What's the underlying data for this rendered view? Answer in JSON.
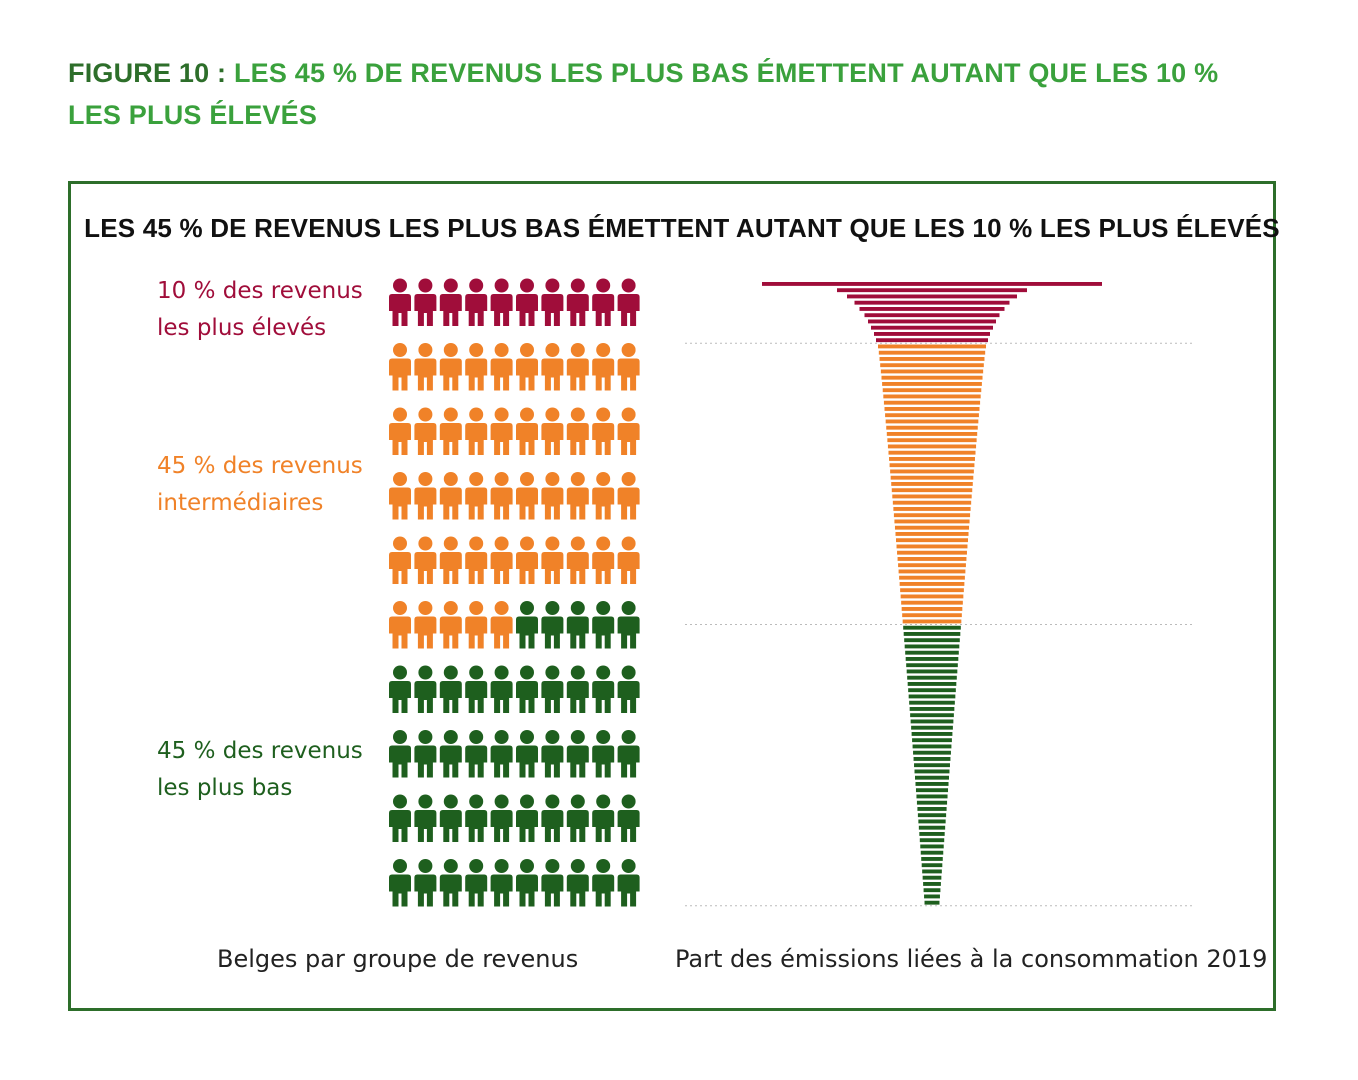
{
  "figure": {
    "title_prefix": "FIGURE 10 :",
    "title": "LES 45 % DE REVENUS LES PLUS BAS ÉMETTENT AUTANT QUE LES 10 % LES PLUS ÉLEVÉS"
  },
  "colors": {
    "top": "#a00d3a",
    "middle": "#f08228",
    "bottom": "#1e5f1e",
    "frame": "#2d6e2a",
    "title_green": "#3aa13c"
  },
  "chart_data": {
    "type": "bar",
    "title": "LES 45 % DE REVENUS LES PLUS BAS ÉMETTENT AUTANT QUE LES 10 % LES PLUS ÉLEVÉS",
    "groups": [
      {
        "label": "10 % des revenus les plus élevés",
        "people": 10,
        "color": "#a00d3a",
        "bars": 10
      },
      {
        "label": "45 % des revenus intermédiaires",
        "people": 45,
        "color": "#f08228",
        "bars": 45
      },
      {
        "label": "45 % des revenus les plus bas",
        "people": 45,
        "color": "#1e5f1e",
        "bars": 45
      }
    ],
    "emission_share_equal": "10 % des revenus les plus élevés = 45 % des revenus les plus bas",
    "left_axis_label": "Belges par groupe de revenus",
    "right_axis_label": "Part des émissions liées à la consommation 2019",
    "people_total": 100,
    "people_per_row": 10,
    "legend": "none",
    "grid": false
  }
}
